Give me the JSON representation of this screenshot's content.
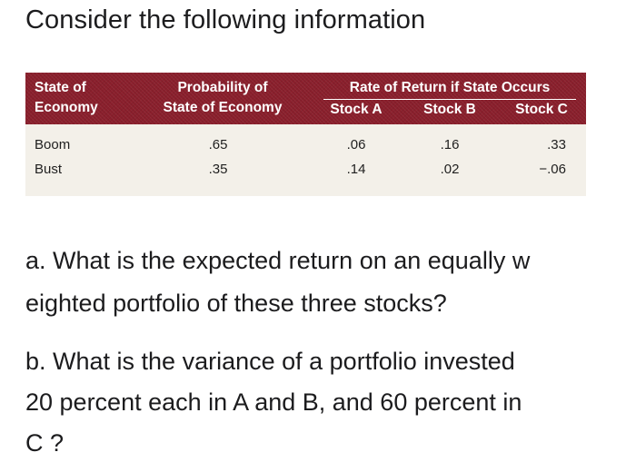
{
  "intro": "Consider the following information",
  "table": {
    "headers": {
      "state_line1": "State of",
      "state_line2": "Economy",
      "prob_line1": "Probability of",
      "prob_line2": "State of Economy",
      "group": "Rate of Return if State Occurs",
      "stock_a": "Stock A",
      "stock_b": "Stock B",
      "stock_c": "Stock C"
    },
    "rows": [
      {
        "state": "Boom",
        "probability": ".65",
        "stock_a": ".06",
        "stock_b": ".16",
        "stock_c": ".33"
      },
      {
        "state": "Bust",
        "probability": ".35",
        "stock_a": ".14",
        "stock_b": ".02",
        "stock_c": "−.06"
      }
    ]
  },
  "questions": {
    "a_line1": "a. What is the expected return on an equally w",
    "a_line2": "eighted portfolio of these three stocks?",
    "b_line1": "b. What is the variance of a portfolio invested",
    "b_line2": "20 percent each in A and B, and 60 percent in",
    "b_line3": "C ?"
  },
  "colors": {
    "header_bg": "#8a1f2c",
    "table_bg": "#f3f0e9"
  }
}
